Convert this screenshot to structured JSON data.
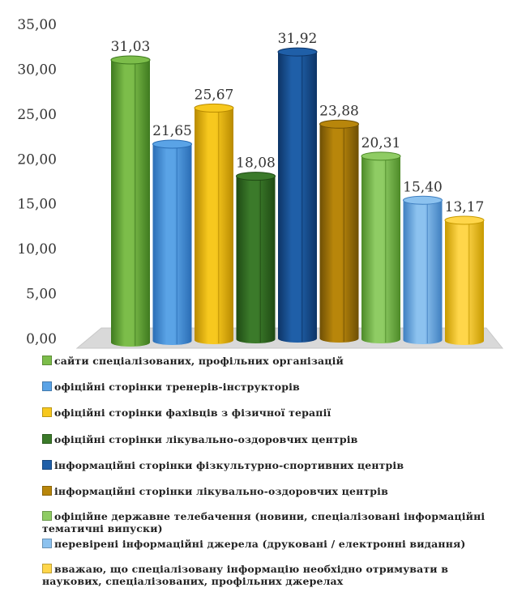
{
  "chart_data": {
    "type": "bar",
    "style": "3d-cylinder",
    "ylim": [
      0,
      35
    ],
    "yticks": [
      "0,00",
      "5,00",
      "10,00",
      "15,00",
      "20,00",
      "25,00",
      "30,00",
      "35,00"
    ],
    "grid": false,
    "legend_position": "bottom",
    "series": [
      {
        "name": "сайти спеціалізованих, профільних організацій",
        "value": 31.03,
        "label": "31,03",
        "color": "#7cbd4a",
        "dark": "#3f7a1f"
      },
      {
        "name": "офіційні сторінки тренерів-інструкторів",
        "value": 21.65,
        "label": "21,65",
        "color": "#5aa3e6",
        "dark": "#2a6db5"
      },
      {
        "name": "офіційні сторінки фахівців з фізичної терапії",
        "value": 25.67,
        "label": "25,67",
        "color": "#f7c81e",
        "dark": "#b88a00"
      },
      {
        "name": "офіційні сторінки лікувально-оздоровчих центрів",
        "value": 18.08,
        "label": "18,08",
        "color": "#3b7a2a",
        "dark": "#1f4a14"
      },
      {
        "name": "інформаційні сторінки фізкультурно-спортивних центрів",
        "value": 31.92,
        "label": "31,92",
        "color": "#1f5fa8",
        "dark": "#0d3466"
      },
      {
        "name": "інформаційні сторінки лікувально-оздоровчих центрів",
        "value": 23.88,
        "label": "23,88",
        "color": "#b8860b",
        "dark": "#6e4f05"
      },
      {
        "name": "офіційне державне телебачення (новини, спеціалізовані інформаційні тематичні випуски)",
        "value": 20.31,
        "label": "20,31",
        "color": "#8fcc64",
        "dark": "#4d8a28"
      },
      {
        "name": "перевірені інформаційні джерела (друковані / електронні видання)",
        "value": 15.4,
        "label": "15,40",
        "color": "#8cc2ef",
        "dark": "#3f7fc0"
      },
      {
        "name": "вважаю, що спеціалізовану інформацію необхідно отримувати в наукових, спеціалізованих, профільних джерелах",
        "value": 13.17,
        "label": "13,17",
        "color": "#ffd64a",
        "dark": "#c79a00"
      }
    ]
  },
  "legend": {
    "items": [
      "сайти спеціалізованих, профільних організацій",
      "офіційні сторінки тренерів-інструкторів",
      "офіційні сторінки фахівців з фізичної терапії",
      "офіційні сторінки лікувально-оздоровчих центрів",
      "інформаційні сторінки фізкультурно-спортивних центрів",
      "інформаційні сторінки лікувально-оздоровчих центрів",
      "офіційне державне телебачення (новини, спеціалізовані інформаційні тематичні випуски)",
      "перевірені інформаційні джерела (друковані / електронні видання)",
      "вважаю, що спеціалізовану інформацію необхідно отримувати в наукових, спеціалізованих, профільних джерелах"
    ]
  }
}
